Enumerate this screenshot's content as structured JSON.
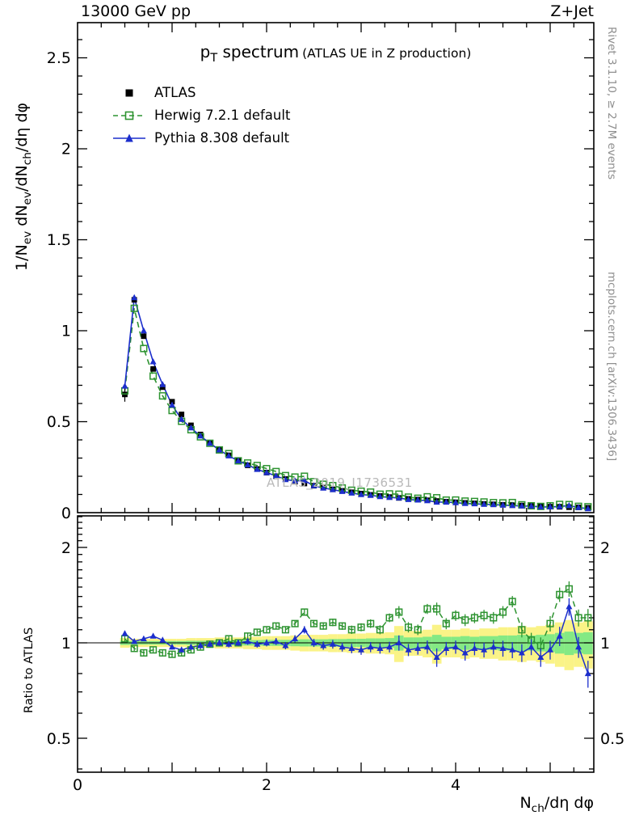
{
  "header": {
    "left": "13000 GeV pp",
    "right": "Z+Jet"
  },
  "title": {
    "main": "p_T spectrum",
    "paren": "(ATLAS UE in Z production)"
  },
  "legend": [
    {
      "label": "ATLAS",
      "marker": "filled-square",
      "color_key": "atlas"
    },
    {
      "label": "Herwig 7.2.1 default",
      "marker": "open-square-dashed-line",
      "color_key": "herwig"
    },
    {
      "label": "Pythia 8.308 default",
      "marker": "filled-triangle-solid-line",
      "color_key": "pythia"
    }
  ],
  "watermark": "ATLAS_2019_I1736531",
  "side_text_top": "Rivet 3.1.10, ≥ 2.7M events",
  "side_text_bottom": "mcplots.cern.ch [arXiv:1306.3436]",
  "axes": {
    "y_main_label": "1/N_ev dN_ev/dN_ch/dη dφ",
    "y_ratio_label": "Ratio to ATLAS",
    "x_label": "N_ch/dη dφ",
    "x_ticks": [
      0,
      2,
      4
    ],
    "y_main_ticks": [
      0.5,
      1,
      1.5,
      2,
      2.5
    ],
    "y_main_zero_label": "0",
    "y_ratio_ticks": [
      0.5,
      1,
      2
    ]
  },
  "colors": {
    "atlas": "#000000",
    "herwig": "#2d9330",
    "pythia": "#1c2ecc",
    "band_yellow": "#faf387",
    "band_green": "#84e984",
    "watermark": "#b9b9b9",
    "sidetext": "#8f8f8f"
  },
  "chart_data": {
    "type": "line",
    "title": "p_T spectrum (ATLAS UE in Z production)",
    "xlabel": "N_ch/dη dφ",
    "ylabel": "1/N_ev dN_ev/dN_ch/dη dφ",
    "ratio_ylabel": "Ratio to ATLAS",
    "x_range": [
      0,
      5.46
    ],
    "y_main_range": [
      0,
      2.7
    ],
    "ratio_range": [
      0.39,
      2.51
    ],
    "ratio_scale": "log",
    "legend_position": "top-left",
    "x": [
      0.5,
      0.6,
      0.7,
      0.8,
      0.9,
      1.0,
      1.1,
      1.2,
      1.3,
      1.4,
      1.5,
      1.6,
      1.7,
      1.8,
      1.9,
      2.0,
      2.1,
      2.2,
      2.3,
      2.4,
      2.5,
      2.6,
      2.7,
      2.8,
      2.9,
      3.0,
      3.1,
      3.2,
      3.3,
      3.4,
      3.5,
      3.6,
      3.7,
      3.8,
      3.9,
      4.0,
      4.1,
      4.2,
      4.3,
      4.4,
      4.5,
      4.6,
      4.7,
      4.8,
      4.9,
      5.0,
      5.1,
      5.2,
      5.3,
      5.4
    ],
    "series": [
      {
        "name": "ATLAS",
        "values": [
          0.65,
          1.17,
          0.97,
          0.79,
          0.69,
          0.61,
          0.54,
          0.48,
          0.43,
          0.385,
          0.345,
          0.315,
          0.285,
          0.26,
          0.24,
          0.22,
          0.2,
          0.185,
          0.17,
          0.16,
          0.148,
          0.138,
          0.128,
          0.12,
          0.112,
          0.105,
          0.098,
          0.092,
          0.086,
          0.081,
          0.076,
          0.072,
          0.068,
          0.064,
          0.06,
          0.057,
          0.054,
          0.051,
          0.048,
          0.046,
          0.043,
          0.041,
          0.039,
          0.037,
          0.035,
          0.033,
          0.032,
          0.03,
          0.029,
          0.027
        ]
      },
      {
        "name": "Herwig 7.2.1 default",
        "ratio_to_atlas": [
          1.03,
          0.96,
          0.93,
          0.95,
          0.93,
          0.92,
          0.93,
          0.95,
          0.97,
          0.99,
          1.0,
          1.03,
          1.0,
          1.05,
          1.08,
          1.1,
          1.13,
          1.1,
          1.15,
          1.25,
          1.15,
          1.13,
          1.16,
          1.13,
          1.1,
          1.12,
          1.15,
          1.1,
          1.2,
          1.25,
          1.12,
          1.1,
          1.28,
          1.28,
          1.15,
          1.22,
          1.18,
          1.2,
          1.22,
          1.2,
          1.25,
          1.35,
          1.1,
          1.02,
          0.98,
          1.15,
          1.42,
          1.48,
          1.2,
          1.2
        ]
      },
      {
        "name": "Pythia 8.308 default",
        "ratio_to_atlas": [
          1.07,
          1.01,
          1.03,
          1.05,
          1.02,
          0.97,
          0.95,
          0.97,
          0.98,
          0.99,
          1.0,
          0.99,
          1.0,
          1.01,
          0.99,
          1.0,
          1.01,
          0.98,
          1.03,
          1.1,
          1.0,
          0.98,
          0.99,
          0.97,
          0.96,
          0.95,
          0.97,
          0.96,
          0.97,
          1.0,
          0.95,
          0.96,
          0.97,
          0.9,
          0.96,
          0.97,
          0.93,
          0.96,
          0.95,
          0.97,
          0.96,
          0.95,
          0.93,
          0.97,
          0.9,
          0.95,
          1.05,
          1.3,
          0.97,
          0.8
        ]
      }
    ],
    "bands": {
      "center": 1.0,
      "yellow_halfwidth": [
        0.035,
        0.03,
        0.03,
        0.03,
        0.03,
        0.03,
        0.03,
        0.035,
        0.035,
        0.035,
        0.04,
        0.04,
        0.04,
        0.045,
        0.045,
        0.05,
        0.05,
        0.05,
        0.055,
        0.06,
        0.06,
        0.06,
        0.065,
        0.065,
        0.07,
        0.07,
        0.075,
        0.075,
        0.08,
        0.13,
        0.09,
        0.09,
        0.1,
        0.14,
        0.1,
        0.1,
        0.11,
        0.1,
        0.11,
        0.11,
        0.12,
        0.12,
        0.13,
        0.12,
        0.13,
        0.14,
        0.16,
        0.18,
        0.16,
        0.17
      ],
      "green_halfwidth": [
        0.015,
        0.013,
        0.013,
        0.013,
        0.013,
        0.013,
        0.013,
        0.015,
        0.015,
        0.015,
        0.018,
        0.018,
        0.018,
        0.02,
        0.02,
        0.022,
        0.022,
        0.022,
        0.024,
        0.026,
        0.026,
        0.026,
        0.028,
        0.028,
        0.03,
        0.03,
        0.033,
        0.033,
        0.035,
        0.055,
        0.04,
        0.04,
        0.045,
        0.06,
        0.045,
        0.045,
        0.05,
        0.045,
        0.05,
        0.05,
        0.055,
        0.055,
        0.06,
        0.055,
        0.06,
        0.065,
        0.075,
        0.085,
        0.075,
        0.08
      ]
    }
  }
}
